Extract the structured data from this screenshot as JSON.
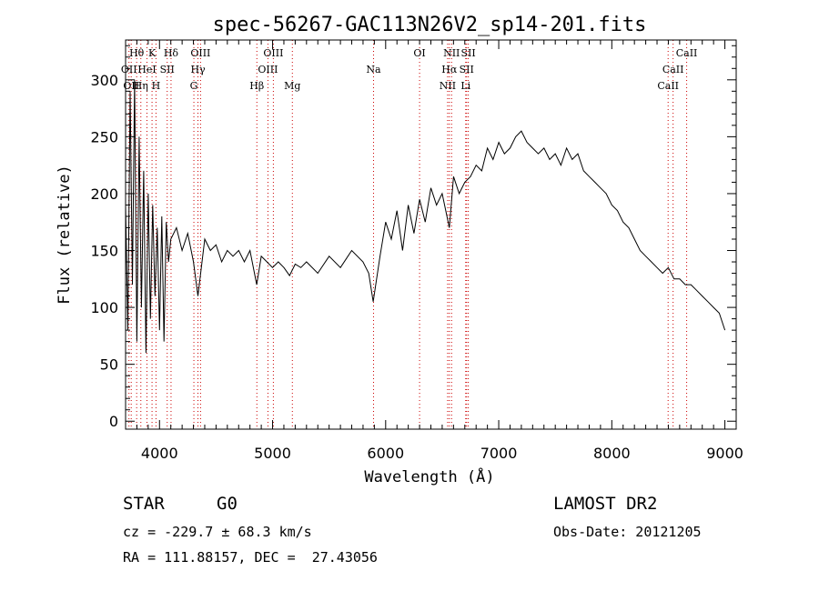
{
  "chart_data": {
    "type": "line",
    "title": "spec-56267-GAC113N26V2_sp14-201.fits",
    "xlabel": "Wavelength (Å)",
    "ylabel": "Flux (relative)",
    "xlim": [
      3700,
      9100
    ],
    "ylim": [
      -7,
      335
    ],
    "xticks": [
      4000,
      5000,
      6000,
      7000,
      8000,
      9000
    ],
    "yticks": [
      0,
      50,
      100,
      150,
      200,
      250,
      300
    ],
    "grid": false,
    "series_color": "#000000",
    "line_marker_color": "#cc0000",
    "series": [
      {
        "x": [
          3700,
          3720,
          3740,
          3760,
          3780,
          3800,
          3820,
          3840,
          3860,
          3880,
          3900,
          3920,
          3940,
          3960,
          3980,
          4000,
          4020,
          4040,
          4060,
          4080,
          4100,
          4150,
          4200,
          4250,
          4300,
          4340,
          4400,
          4450,
          4500,
          4550,
          4600,
          4650,
          4700,
          4750,
          4800,
          4860,
          4900,
          4950,
          5000,
          5050,
          5100,
          5150,
          5200,
          5250,
          5300,
          5400,
          5500,
          5600,
          5700,
          5800,
          5850,
          5890,
          5950,
          6000,
          6050,
          6100,
          6150,
          6200,
          6250,
          6300,
          6350,
          6400,
          6450,
          6500,
          6563,
          6600,
          6650,
          6700,
          6750,
          6800,
          6850,
          6900,
          6950,
          7000,
          7050,
          7100,
          7150,
          7200,
          7250,
          7300,
          7350,
          7400,
          7450,
          7500,
          7550,
          7600,
          7650,
          7700,
          7750,
          7800,
          7850,
          7900,
          7950,
          8000,
          8050,
          8100,
          8150,
          8200,
          8250,
          8300,
          8350,
          8400,
          8450,
          8500,
          8550,
          8600,
          8650,
          8700,
          8750,
          8800,
          8850,
          8900,
          8950,
          9000
        ],
        "y": [
          190,
          80,
          290,
          120,
          300,
          70,
          250,
          100,
          220,
          60,
          200,
          90,
          190,
          110,
          170,
          80,
          180,
          70,
          175,
          140,
          160,
          170,
          150,
          165,
          140,
          110,
          160,
          150,
          155,
          140,
          150,
          145,
          150,
          140,
          150,
          120,
          145,
          140,
          135,
          140,
          135,
          128,
          138,
          135,
          140,
          130,
          145,
          135,
          150,
          140,
          130,
          105,
          145,
          175,
          160,
          185,
          150,
          190,
          165,
          195,
          175,
          205,
          190,
          200,
          170,
          215,
          200,
          210,
          215,
          225,
          220,
          240,
          230,
          245,
          235,
          240,
          250,
          255,
          245,
          240,
          235,
          240,
          230,
          235,
          225,
          240,
          230,
          235,
          220,
          215,
          210,
          205,
          200,
          190,
          185,
          175,
          170,
          160,
          150,
          145,
          140,
          135,
          130,
          135,
          125,
          125,
          120,
          120,
          115,
          110,
          105,
          100,
          95,
          80
        ]
      }
    ],
    "spectral_lines": [
      {
        "x": 3730,
        "name": "OII",
        "row": 1
      },
      {
        "x": 3750,
        "name": "OII",
        "row": 2
      },
      {
        "x": 3798,
        "name": "Hθ",
        "row": 0
      },
      {
        "x": 3835,
        "name": "Hη",
        "row": 2
      },
      {
        "x": 3889,
        "name": "HeI",
        "row": 1
      },
      {
        "x": 3934,
        "name": "K",
        "row": 0
      },
      {
        "x": 3969,
        "name": "H",
        "row": 2
      },
      {
        "x": 4068,
        "name": "SII",
        "row": 1
      },
      {
        "x": 4102,
        "name": "Hδ",
        "row": 0
      },
      {
        "x": 4340,
        "name": "Hγ",
        "row": 1
      },
      {
        "x": 4304,
        "name": "G",
        "row": 2
      },
      {
        "x": 4363,
        "name": "OIII",
        "row": 0
      },
      {
        "x": 4861,
        "name": "Hβ",
        "row": 2
      },
      {
        "x": 4959,
        "name": "OIII",
        "row": 1
      },
      {
        "x": 5007,
        "name": "OIII",
        "row": 0
      },
      {
        "x": 5175,
        "name": "Mg",
        "row": 2
      },
      {
        "x": 5893,
        "name": "Na",
        "row": 1
      },
      {
        "x": 6300,
        "name": "OI",
        "row": 0
      },
      {
        "x": 6548,
        "name": "NII",
        "row": 2
      },
      {
        "x": 6563,
        "name": "Hα",
        "row": 1
      },
      {
        "x": 6583,
        "name": "NII",
        "row": 0
      },
      {
        "x": 6708,
        "name": "Li",
        "row": 2
      },
      {
        "x": 6716,
        "name": "SII",
        "row": 1
      },
      {
        "x": 6731,
        "name": "SII",
        "row": 0
      },
      {
        "x": 8498,
        "name": "CaII",
        "row": 2
      },
      {
        "x": 8542,
        "name": "CaII",
        "row": 1
      },
      {
        "x": 8662,
        "name": "CaII",
        "row": 0
      }
    ]
  },
  "info": {
    "object_type": "STAR",
    "subclass": "G0",
    "survey": "LAMOST DR2",
    "cz": "cz = -229.7 ± 68.3 km/s",
    "obs_date": "Obs-Date: 20121205",
    "coords": "RA = 111.88157, DEC =  27.43056"
  }
}
